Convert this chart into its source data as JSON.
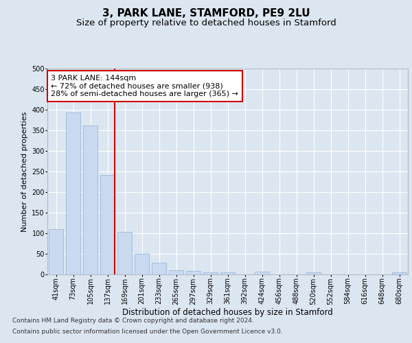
{
  "title": "3, PARK LANE, STAMFORD, PE9 2LU",
  "subtitle": "Size of property relative to detached houses in Stamford",
  "xlabel": "Distribution of detached houses by size in Stamford",
  "ylabel": "Number of detached properties",
  "bar_labels": [
    "41sqm",
    "73sqm",
    "105sqm",
    "137sqm",
    "169sqm",
    "201sqm",
    "233sqm",
    "265sqm",
    "297sqm",
    "329sqm",
    "361sqm",
    "392sqm",
    "424sqm",
    "456sqm",
    "488sqm",
    "520sqm",
    "552sqm",
    "584sqm",
    "616sqm",
    "648sqm",
    "680sqm"
  ],
  "bar_values": [
    110,
    393,
    362,
    242,
    103,
    50,
    29,
    10,
    8,
    5,
    5,
    0,
    6,
    0,
    0,
    5,
    0,
    0,
    0,
    0,
    5
  ],
  "bar_color": "#c9daf0",
  "bar_edgecolor": "#9ab8d8",
  "vline_color": "#cc0000",
  "annotation_text": "3 PARK LANE: 144sqm\n← 72% of detached houses are smaller (938)\n28% of semi-detached houses are larger (365) →",
  "annotation_box_color": "#ffffff",
  "annotation_box_edgecolor": "#cc0000",
  "ylim": [
    0,
    500
  ],
  "yticks": [
    0,
    50,
    100,
    150,
    200,
    250,
    300,
    350,
    400,
    450,
    500
  ],
  "background_color": "#dce6f1",
  "plot_background": "#dce6f1",
  "footer_line1": "Contains HM Land Registry data © Crown copyright and database right 2024.",
  "footer_line2": "Contains public sector information licensed under the Open Government Licence v3.0.",
  "title_fontsize": 11,
  "subtitle_fontsize": 9.5,
  "xlabel_fontsize": 8.5,
  "ylabel_fontsize": 8,
  "tick_fontsize": 7,
  "footer_fontsize": 6.5,
  "annotation_fontsize": 8
}
